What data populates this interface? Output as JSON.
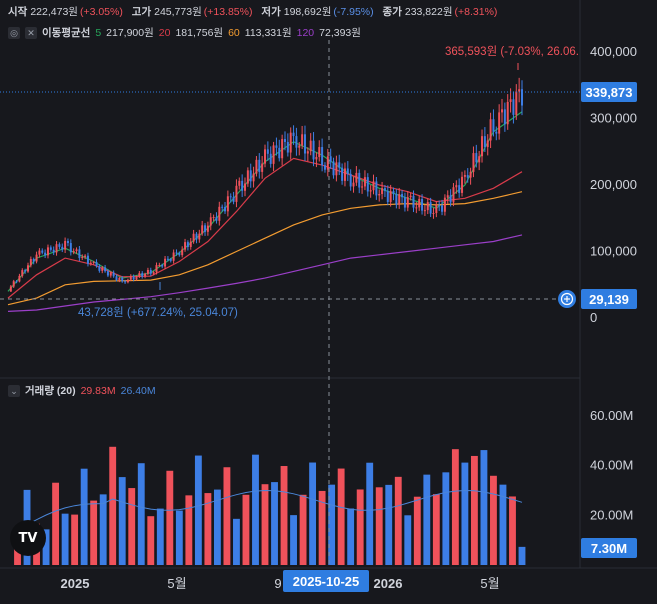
{
  "header": {
    "open_label": "시작",
    "open_value": "222,473원",
    "open_change": "(+3.05%)",
    "high_label": "고가",
    "high_value": "245,773원",
    "high_change": "(+13.85%)",
    "low_label": "저가",
    "low_value": "198,692원",
    "low_change": "(-7.95%)",
    "close_label": "종가",
    "close_value": "233,822원",
    "close_change": "(+8.31%)"
  },
  "ma_legend": {
    "icon": "eye-off-icon",
    "close_icon": "close-icon",
    "title": "이동평균선",
    "p5": "5",
    "v5": "217,900원",
    "p20": "20",
    "v20": "181,756원",
    "p60": "60",
    "v60": "113,331원",
    "p120": "120",
    "v120": "72,393원"
  },
  "volume_legend": {
    "icon": "collapse-icon",
    "title": "거래량 (20)",
    "v1": "29.83M",
    "v2": "26.40M"
  },
  "price_axis": {
    "ticks": [
      "400,000",
      "300,000",
      "200,000",
      "100,000",
      "0"
    ],
    "current_label": "339,873",
    "alert_label": "29,139"
  },
  "volume_axis": {
    "ticks": [
      "60.00M",
      "40.00M",
      "20.00M"
    ],
    "current_label": "7.30M"
  },
  "time_axis": {
    "ticks": [
      "2025",
      "5월",
      "9",
      "2026",
      "5월"
    ],
    "crosshair_label": "2025-10-25"
  },
  "annotations": {
    "high": "365,593원 (-7.03%, 26.06.",
    "low": "43,728원 (+677.24%, 25.04.07)"
  },
  "colors": {
    "up": "#f0525b",
    "down": "#3d7ee6",
    "ma5": "#26a65b",
    "ma20": "#d83b4a",
    "ma60": "#f39c31",
    "ma120": "#9b3fc9",
    "vol_ma": "#4a86d9",
    "accent": "#2f7de1"
  },
  "chart_data": {
    "type": "candlestick",
    "x": [
      "2024-12",
      "2025-01",
      "2025-02",
      "2025-03",
      "2025-04",
      "2025-05",
      "2025-06",
      "2025-07",
      "2025-08",
      "2025-09",
      "2025-10",
      "2025-11",
      "2025-12",
      "2026-01",
      "2026-02",
      "2026-03",
      "2026-04",
      "2026-05",
      "2026-06"
    ],
    "close": [
      42000,
      95000,
      110000,
      80000,
      55000,
      70000,
      100000,
      140000,
      190000,
      240000,
      270000,
      240000,
      210000,
      190000,
      175000,
      160000,
      210000,
      290000,
      339873
    ],
    "ma": [
      {
        "name": "5",
        "values": [
          40000,
          90000,
          105000,
          85000,
          60000,
          68000,
          98000,
          135000,
          185000,
          235000,
          265000,
          245000,
          215000,
          195000,
          180000,
          165000,
          200000,
          280000,
          310000
        ]
      },
      {
        "name": "20",
        "values": [
          30000,
          65000,
          90000,
          80000,
          62000,
          63000,
          85000,
          115000,
          160000,
          210000,
          240000,
          230000,
          215000,
          200000,
          190000,
          175000,
          180000,
          195000,
          220000
        ]
      },
      {
        "name": "60",
        "values": [
          20000,
          30000,
          50000,
          55000,
          56000,
          57000,
          65000,
          80000,
          100000,
          120000,
          140000,
          155000,
          165000,
          170000,
          172000,
          170000,
          172000,
          180000,
          190000
        ]
      },
      {
        "name": "120",
        "values": [
          10000,
          12000,
          18000,
          24000,
          28000,
          32000,
          38000,
          45000,
          52000,
          60000,
          70000,
          80000,
          90000,
          95000,
          100000,
          105000,
          110000,
          115000,
          125000
        ]
      }
    ],
    "volume": [
      22,
      20,
      28,
      38,
      55,
      30,
      35,
      48,
      30,
      52,
      30,
      45,
      32,
      45,
      25,
      38,
      58,
      48,
      7.3
    ],
    "volume_unit": "M",
    "ylim_price": [
      0,
      420000
    ],
    "ylim_volume": [
      0,
      70
    ],
    "grid": false,
    "legend_position": "top-left"
  }
}
